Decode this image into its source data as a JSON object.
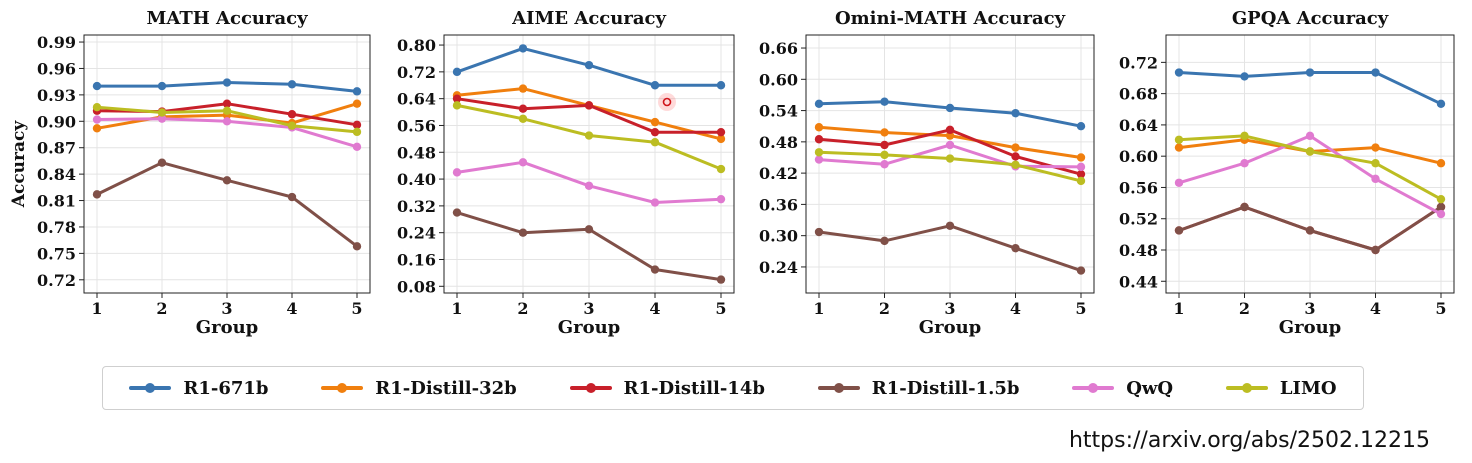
{
  "series_meta": [
    {
      "name": "R1-671b",
      "color": "#3a75b0"
    },
    {
      "name": "R1-Distill-32b",
      "color": "#f07f0e"
    },
    {
      "name": "R1-Distill-14b",
      "color": "#c8202a"
    },
    {
      "name": "R1-Distill-1.5b",
      "color": "#805048"
    },
    {
      "name": "QwQ",
      "color": "#e07ad0"
    },
    {
      "name": "LIMO",
      "color": "#bcbd22"
    }
  ],
  "source_url": "https://arxiv.org/abs/2502.12215",
  "chart_data": [
    {
      "type": "line",
      "title": "MATH Accuracy",
      "xlabel": "Group",
      "ylabel": "Accuracy",
      "x": [
        1,
        2,
        3,
        4,
        5
      ],
      "ylim": [
        0.705,
        0.998
      ],
      "yticks": [
        "0.72",
        "0.75",
        "0.78",
        "0.81",
        "0.84",
        "0.87",
        "0.90",
        "0.93",
        "0.96",
        "0.99"
      ],
      "series": [
        {
          "name": "R1-671b",
          "values": [
            0.94,
            0.94,
            0.944,
            0.942,
            0.934
          ]
        },
        {
          "name": "R1-Distill-32b",
          "values": [
            0.892,
            0.905,
            0.907,
            0.898,
            0.92
          ]
        },
        {
          "name": "R1-Distill-14b",
          "values": [
            0.912,
            0.911,
            0.92,
            0.908,
            0.896
          ]
        },
        {
          "name": "R1-Distill-1.5b",
          "values": [
            0.817,
            0.853,
            0.833,
            0.814,
            0.758
          ]
        },
        {
          "name": "QwQ",
          "values": [
            0.902,
            0.903,
            0.9,
            0.893,
            0.871
          ]
        },
        {
          "name": "LIMO",
          "values": [
            0.916,
            0.91,
            0.912,
            0.895,
            0.888
          ]
        }
      ]
    },
    {
      "type": "line",
      "title": "AIME Accuracy",
      "xlabel": "Group",
      "ylabel": "",
      "x": [
        1,
        2,
        3,
        4,
        5
      ],
      "ylim": [
        0.06,
        0.83
      ],
      "yticks": [
        "0.08",
        "0.16",
        "0.24",
        "0.32",
        "0.40",
        "0.48",
        "0.56",
        "0.64",
        "0.72",
        "0.80"
      ],
      "series": [
        {
          "name": "R1-671b",
          "values": [
            0.72,
            0.79,
            0.74,
            0.68,
            0.68
          ]
        },
        {
          "name": "R1-Distill-32b",
          "values": [
            0.65,
            0.67,
            0.62,
            0.57,
            0.52
          ]
        },
        {
          "name": "R1-Distill-14b",
          "values": [
            0.64,
            0.61,
            0.62,
            0.54,
            0.54
          ]
        },
        {
          "name": "R1-Distill-1.5b",
          "values": [
            0.3,
            0.24,
            0.25,
            0.13,
            0.1
          ]
        },
        {
          "name": "QwQ",
          "values": [
            0.42,
            0.45,
            0.38,
            0.33,
            0.34
          ]
        },
        {
          "name": "LIMO",
          "values": [
            0.62,
            0.58,
            0.53,
            0.51,
            0.43
          ]
        }
      ]
    },
    {
      "type": "line",
      "title": "Omini-MATH Accuracy",
      "xlabel": "Group",
      "ylabel": "",
      "x": [
        1,
        2,
        3,
        4,
        5
      ],
      "ylim": [
        0.19,
        0.685
      ],
      "yticks": [
        "0.24",
        "0.30",
        "0.36",
        "0.42",
        "0.48",
        "0.54",
        "0.60",
        "0.66"
      ],
      "series": [
        {
          "name": "R1-671b",
          "values": [
            0.553,
            0.557,
            0.545,
            0.535,
            0.51
          ]
        },
        {
          "name": "R1-Distill-32b",
          "values": [
            0.508,
            0.498,
            0.492,
            0.469,
            0.45
          ]
        },
        {
          "name": "R1-Distill-14b",
          "values": [
            0.485,
            0.474,
            0.503,
            0.452,
            0.418
          ]
        },
        {
          "name": "R1-Distill-1.5b",
          "values": [
            0.307,
            0.29,
            0.319,
            0.276,
            0.233
          ]
        },
        {
          "name": "QwQ",
          "values": [
            0.446,
            0.437,
            0.474,
            0.433,
            0.432
          ]
        },
        {
          "name": "LIMO",
          "values": [
            0.46,
            0.455,
            0.448,
            0.436,
            0.405
          ]
        }
      ]
    },
    {
      "type": "line",
      "title": "GPQA Accuracy",
      "xlabel": "Group",
      "ylabel": "",
      "x": [
        1,
        2,
        3,
        4,
        5
      ],
      "ylim": [
        0.425,
        0.755
      ],
      "yticks": [
        "0.44",
        "0.48",
        "0.52",
        "0.56",
        "0.60",
        "0.64",
        "0.68",
        "0.72"
      ],
      "series": [
        {
          "name": "R1-671b",
          "values": [
            0.707,
            0.702,
            0.707,
            0.707,
            0.667
          ]
        },
        {
          "name": "R1-Distill-32b",
          "values": [
            0.611,
            0.621,
            0.606,
            0.611,
            0.591
          ]
        },
        {
          "name": "R1-Distill-14b",
          "values": [
            0.505,
            0.535,
            0.505,
            0.48,
            0.535
          ]
        },
        {
          "name": "R1-Distill-1.5b",
          "values": [
            0.505,
            0.535,
            0.505,
            0.48,
            0.535
          ]
        },
        {
          "name": "QwQ",
          "values": [
            0.566,
            0.591,
            0.626,
            0.571,
            0.526
          ]
        },
        {
          "name": "LIMO",
          "values": [
            0.621,
            0.626,
            0.606,
            0.591,
            0.545
          ]
        }
      ]
    }
  ]
}
